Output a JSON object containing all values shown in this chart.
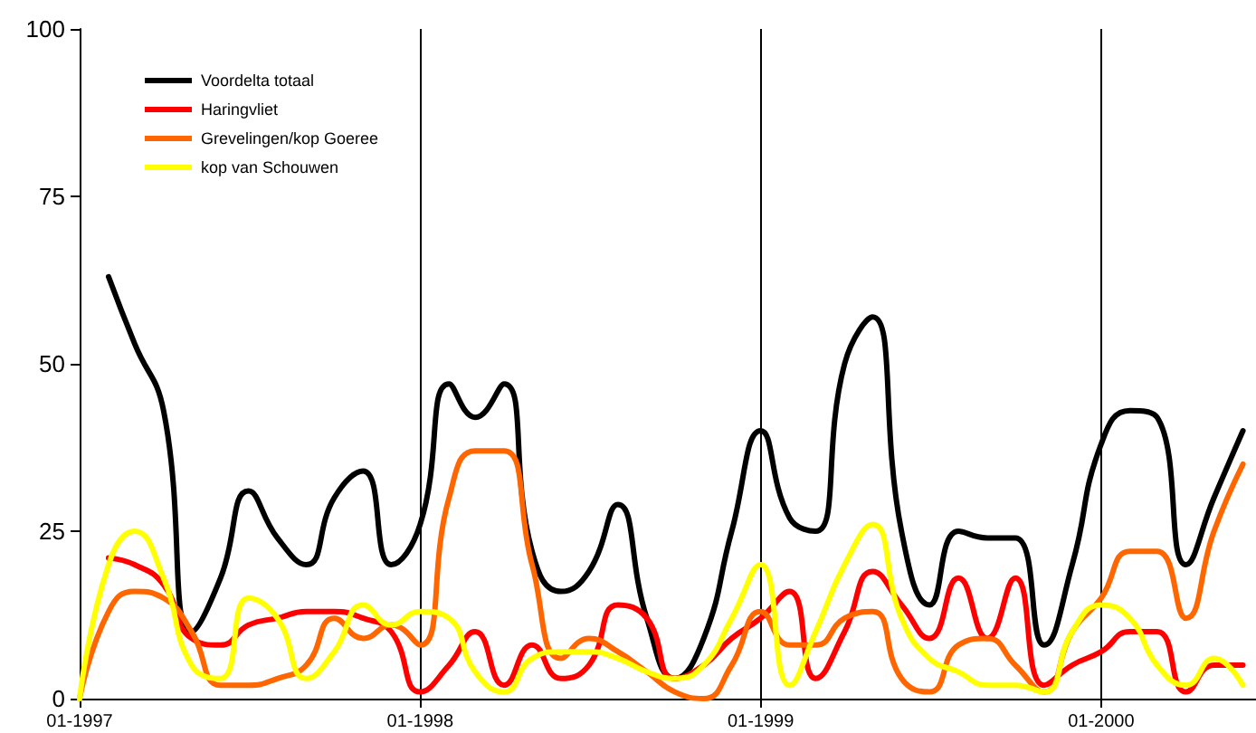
{
  "chart_data": {
    "type": "line",
    "x": [
      "1997-01",
      "1997-02",
      "1997-03",
      "1997-04",
      "1997-05",
      "1997-06",
      "1997-07",
      "1997-08",
      "1997-09",
      "1997-10",
      "1997-11",
      "1997-12",
      "1998-01",
      "1998-02",
      "1998-03",
      "1998-04",
      "1998-05",
      "1998-06",
      "1998-07",
      "1998-08",
      "1998-09",
      "1998-10",
      "1998-11",
      "1998-12",
      "1999-01",
      "1999-02",
      "1999-03",
      "1999-04",
      "1999-05",
      "1999-06",
      "1999-07",
      "1999-08",
      "1999-09",
      "1999-10",
      "1999-11",
      "1999-12",
      "2000-01",
      "2000-02",
      "2000-03",
      "2000-04",
      "2000-05",
      "2000-06"
    ],
    "series": [
      {
        "name": "Voordelta totaal",
        "color": "#000000",
        "values": [
          null,
          63,
          53,
          43,
          10,
          18,
          31,
          24,
          20,
          30,
          34,
          20,
          26,
          47,
          42,
          47,
          22,
          16,
          19,
          29,
          12,
          3,
          9,
          25,
          40,
          27,
          25,
          50,
          57,
          25,
          14,
          25,
          24,
          24,
          8,
          20,
          38,
          43,
          42,
          20,
          30,
          40
        ]
      },
      {
        "name": "Haringvliet",
        "color": "#ff0000",
        "values": [
          null,
          21,
          20,
          17,
          9,
          8,
          11,
          12,
          13,
          13,
          12,
          10,
          1,
          5,
          10,
          2,
          8,
          3,
          5,
          14,
          12,
          3,
          5,
          9,
          12,
          16,
          3,
          10,
          19,
          14,
          9,
          18,
          9,
          18,
          2,
          5,
          7,
          10,
          10,
          1,
          5,
          5
        ]
      },
      {
        "name": "Grevelingen/kop Goeree",
        "color": "#ff6600",
        "values": [
          0,
          13,
          16,
          15,
          10,
          2,
          2,
          3,
          5,
          12,
          9,
          11,
          8,
          30,
          37,
          37,
          20,
          6,
          9,
          7,
          4,
          1,
          0,
          5,
          13,
          8,
          8,
          12,
          13,
          3,
          1,
          8,
          9,
          5,
          1,
          10,
          15,
          22,
          22,
          12,
          25,
          35
        ]
      },
      {
        "name": "kop van Schouwen",
        "color": "#ffff00",
        "values": [
          0,
          20,
          25,
          18,
          5,
          3,
          15,
          12,
          3,
          7,
          14,
          11,
          13,
          12,
          4,
          1,
          6,
          7,
          7,
          6,
          4,
          3,
          5,
          12,
          20,
          2,
          10,
          20,
          26,
          12,
          6,
          4,
          2,
          2,
          1,
          10,
          14,
          12,
          5,
          2,
          6,
          2
        ]
      }
    ],
    "xlim": [
      "1997-01",
      "2000-06-15"
    ],
    "xticks": [
      {
        "value": "1997-01",
        "label": "01-1997"
      },
      {
        "value": "1998-01",
        "label": "01-1998"
      },
      {
        "value": "1999-01",
        "label": "01-1999"
      },
      {
        "value": "2000-01",
        "label": "01-2000"
      }
    ],
    "ylim": [
      0,
      100
    ],
    "yticks": [
      0,
      25,
      50,
      75,
      100
    ],
    "grid": "x",
    "legend": "top left",
    "marker": "none",
    "line_style": "solid"
  }
}
